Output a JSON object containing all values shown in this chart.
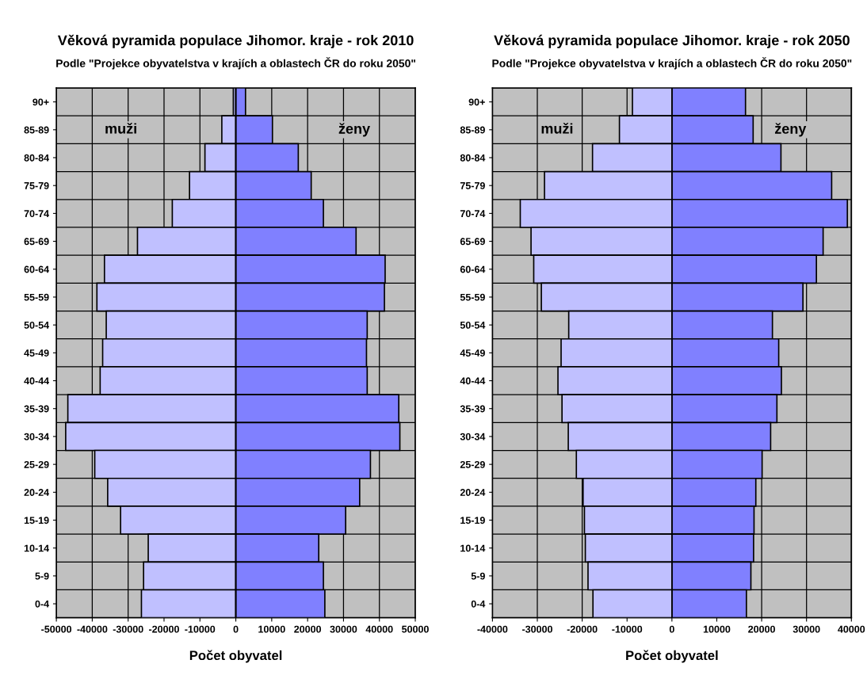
{
  "chart_data": [
    {
      "type": "bar",
      "orientation": "horizontal",
      "title": "Věková pyramida populace Jihomor. kraje - rok 2010",
      "subtitle": "Podle \"Projekce obyvatelstva v krajích a oblastech ČR do roku 2050\"",
      "xlabel": "Počet obyvatel",
      "annotations": [
        "muži",
        "ženy"
      ],
      "categories": [
        "90+",
        "85-89",
        "80-84",
        "75-79",
        "70-74",
        "65-69",
        "60-64",
        "55-59",
        "50-54",
        "45-49",
        "40-44",
        "35-39",
        "30-34",
        "25-29",
        "20-24",
        "15-19",
        "10-14",
        "5-9",
        "0-4"
      ],
      "series": [
        {
          "color": "#c0c0ff",
          "values": [
            -700,
            -3900,
            -8600,
            -12900,
            -17700,
            -27400,
            -36600,
            -38700,
            -36100,
            -37100,
            -37800,
            -46800,
            -47400,
            -39300,
            -35700,
            -32100,
            -24400,
            -25700,
            -26300
          ]
        },
        {
          "color": "#8080ff",
          "values": [
            2700,
            10200,
            17400,
            21000,
            24400,
            33500,
            41600,
            41400,
            36600,
            36400,
            36600,
            45400,
            45700,
            37500,
            34500,
            30600,
            23100,
            24400,
            24800
          ]
        }
      ],
      "xlim": [
        -50000,
        50000
      ],
      "xticks": [
        -50000,
        -40000,
        -30000,
        -20000,
        -10000,
        0,
        10000,
        20000,
        30000,
        40000,
        50000
      ],
      "grid": true,
      "stacked": true
    },
    {
      "type": "bar",
      "orientation": "horizontal",
      "title": "Věková pyramida populace Jihomor. kraje - rok 2050",
      "subtitle": "Podle \"Projekce obyvatelstva v krajích a oblastech ČR do roku 2050\"",
      "xlabel": "Počet obyvatel",
      "annotations": [
        "muži",
        "ženy"
      ],
      "categories": [
        "90+",
        "85-89",
        "80-84",
        "75-79",
        "70-74",
        "65-69",
        "60-64",
        "55-59",
        "50-54",
        "45-49",
        "40-44",
        "35-39",
        "30-34",
        "25-29",
        "20-24",
        "15-19",
        "10-14",
        "5-9",
        "0-4"
      ],
      "series": [
        {
          "color": "#c0c0ff",
          "values": [
            -8800,
            -11700,
            -17700,
            -28400,
            -33800,
            -31400,
            -30800,
            -29100,
            -23000,
            -24700,
            -25400,
            -24500,
            -23100,
            -21300,
            -19800,
            -19500,
            -19300,
            -18700,
            -17600
          ]
        },
        {
          "color": "#8080ff",
          "values": [
            16400,
            18100,
            24300,
            35600,
            39100,
            33700,
            32200,
            29200,
            22400,
            23800,
            24400,
            23400,
            22000,
            20100,
            18700,
            18300,
            18200,
            17600,
            16600
          ]
        }
      ],
      "xlim": [
        -40000,
        40000
      ],
      "xticks": [
        -40000,
        -30000,
        -20000,
        -10000,
        0,
        10000,
        20000,
        30000,
        40000
      ],
      "grid": true,
      "stacked": true
    }
  ]
}
